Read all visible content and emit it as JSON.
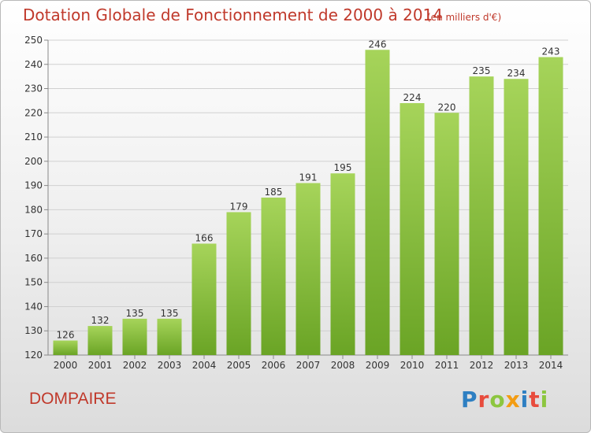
{
  "title": "Dotation Globale de Fonctionnement de 2000 à 2014",
  "subtitle": "(en milliers d'€)",
  "commune": "DOMPAIRE",
  "logo": {
    "text": "Proxiti",
    "letters": [
      {
        "ch": "P",
        "color": "#2e7fc2"
      },
      {
        "ch": "r",
        "color": "#e84c3d"
      },
      {
        "ch": "o",
        "color": "#8cc63f"
      },
      {
        "ch": "x",
        "color": "#f39c12"
      },
      {
        "ch": "i",
        "color": "#2e7fc2"
      },
      {
        "ch": "t",
        "color": "#e84c3d"
      },
      {
        "ch": "i",
        "color": "#8cc63f"
      }
    ]
  },
  "colors": {
    "bar_light": "#a6d45a",
    "bar_dark": "#6aa425",
    "grid": "#d0d0d0",
    "text": "#333333",
    "title": "#c0392b"
  },
  "chart_data": {
    "type": "bar",
    "categories": [
      "2000",
      "2001",
      "2002",
      "2003",
      "2004",
      "2005",
      "2006",
      "2007",
      "2008",
      "2009",
      "2010",
      "2011",
      "2012",
      "2013",
      "2014"
    ],
    "values": [
      126,
      132,
      135,
      135,
      166,
      179,
      185,
      191,
      195,
      246,
      224,
      220,
      235,
      234,
      243
    ],
    "ylim": [
      120,
      250
    ],
    "yticks": [
      120,
      130,
      140,
      150,
      160,
      170,
      180,
      190,
      200,
      210,
      220,
      230,
      240,
      250
    ],
    "grid": true
  }
}
